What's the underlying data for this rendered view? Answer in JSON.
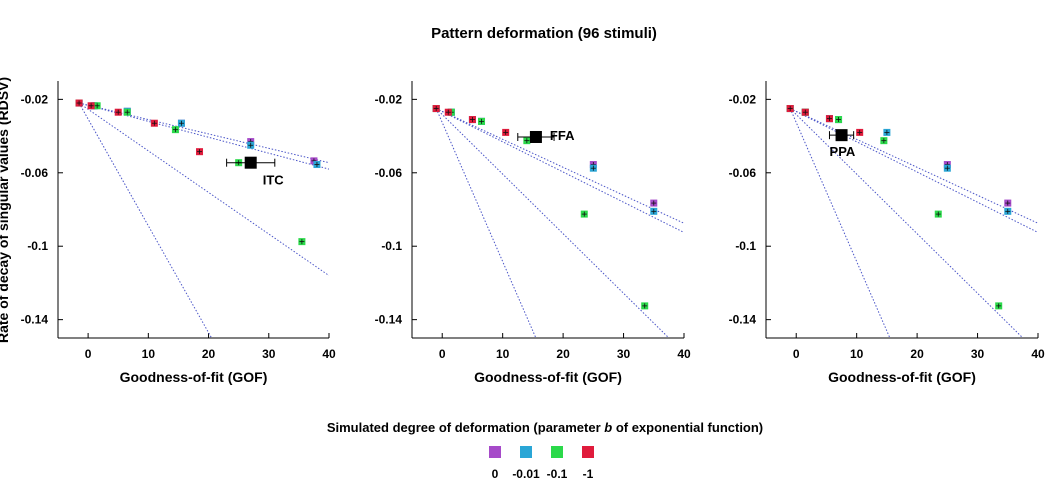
{
  "title": "Pattern deformation (96 stimuli)",
  "ylabel": "Rate of decay of singular values (RDSV)",
  "legend": {
    "title_prefix": "Simulated degree of deformation (parameter ",
    "title_italic": "b",
    "title_suffix": " of exponential function)",
    "entries": [
      {
        "label": "0",
        "color": "#a64ac9"
      },
      {
        "label": "-0.01",
        "color": "#2aa6d6"
      },
      {
        "label": "-0.1",
        "color": "#2bd94a"
      },
      {
        "label": "-1",
        "color": "#e01b3c"
      }
    ]
  },
  "chart_data": [
    {
      "type": "scatter",
      "xlabel": "Goodness-of-fit (GOF)",
      "xlim": [
        -5,
        40
      ],
      "ylim": [
        -0.15,
        -0.01
      ],
      "xticks": [
        0,
        10,
        20,
        30,
        40
      ],
      "yticks": [
        -0.02,
        -0.06,
        -0.1,
        -0.14
      ],
      "ytick_labels": [
        "-0.02",
        "-0.06",
        "-0.1",
        "-0.14"
      ],
      "series": [
        {
          "color": "#a64ac9",
          "points": [
            [
              -1.5,
              -0.022
            ],
            [
              1,
              -0.0235
            ],
            [
              6.5,
              -0.0265
            ],
            [
              15.5,
              -0.033
            ],
            [
              27,
              -0.043
            ],
            [
              37.5,
              -0.0535
            ]
          ]
        },
        {
          "color": "#2aa6d6",
          "points": [
            [
              -1.5,
              -0.022
            ],
            [
              1,
              -0.0235
            ],
            [
              6.5,
              -0.0265
            ],
            [
              15.5,
              -0.033
            ],
            [
              27,
              -0.045
            ],
            [
              38,
              -0.0555
            ]
          ]
        },
        {
          "color": "#2bd94a",
          "points": [
            [
              -1.5,
              -0.022
            ],
            [
              1.5,
              -0.0235
            ],
            [
              6.5,
              -0.027
            ],
            [
              14.5,
              -0.0365
            ],
            [
              25,
              -0.0545
            ],
            [
              35.5,
              -0.0975
            ]
          ]
        },
        {
          "color": "#e01b3c",
          "points": [
            [
              -1.5,
              -0.022
            ],
            [
              0.5,
              -0.0235
            ],
            [
              5,
              -0.027
            ],
            [
              11,
              -0.033
            ],
            [
              18.5,
              -0.0485
            ]
          ]
        }
      ],
      "fit_lines": [
        {
          "from": [
            -1.5,
            -0.022
          ],
          "to": [
            40,
            -0.0545
          ]
        },
        {
          "from": [
            -1.5,
            -0.022
          ],
          "to": [
            40,
            -0.058
          ]
        },
        {
          "from": [
            -1.5,
            -0.022
          ],
          "to": [
            40,
            -0.116
          ]
        },
        {
          "from": [
            -1.5,
            -0.022
          ],
          "to": [
            20.5,
            -0.15
          ]
        }
      ],
      "observed": {
        "label": "ITC",
        "x": 27,
        "y": -0.0545,
        "xerr": 4
      }
    },
    {
      "type": "scatter",
      "xlabel": "Goodness-of-fit (GOF)",
      "xlim": [
        -5,
        40
      ],
      "ylim": [
        -0.15,
        -0.01
      ],
      "xticks": [
        0,
        10,
        20,
        30,
        40
      ],
      "yticks": [
        -0.02,
        -0.06,
        -0.1,
        -0.14
      ],
      "ytick_labels": [
        "-0.02",
        "-0.06",
        "-0.1",
        "-0.14"
      ],
      "series": [
        {
          "color": "#a64ac9",
          "points": [
            [
              -1,
              -0.025
            ],
            [
              1.5,
              -0.027
            ],
            [
              5,
              -0.031
            ],
            [
              6.5,
              -0.032
            ],
            [
              25,
              -0.0555
            ],
            [
              35,
              -0.0765
            ]
          ]
        },
        {
          "color": "#2aa6d6",
          "points": [
            [
              -1,
              -0.025
            ],
            [
              1.5,
              -0.027
            ],
            [
              5,
              -0.031
            ],
            [
              6.5,
              -0.032
            ],
            [
              25,
              -0.0575
            ],
            [
              35,
              -0.081
            ]
          ]
        },
        {
          "color": "#2bd94a",
          "points": [
            [
              -1,
              -0.025
            ],
            [
              1.5,
              -0.027
            ],
            [
              6.5,
              -0.032
            ],
            [
              14,
              -0.0425
            ],
            [
              23.5,
              -0.0825
            ],
            [
              33.5,
              -0.1325
            ]
          ]
        },
        {
          "color": "#e01b3c",
          "points": [
            [
              -1,
              -0.025
            ],
            [
              1,
              -0.027
            ],
            [
              5,
              -0.031
            ],
            [
              10.5,
              -0.038
            ]
          ]
        }
      ],
      "fit_lines": [
        {
          "from": [
            -1,
            -0.025
          ],
          "to": [
            40,
            -0.0875
          ]
        },
        {
          "from": [
            -1,
            -0.025
          ],
          "to": [
            40,
            -0.0925
          ]
        },
        {
          "from": [
            -1,
            -0.025
          ],
          "to": [
            37.5,
            -0.15
          ]
        },
        {
          "from": [
            -1,
            -0.025
          ],
          "to": [
            15.5,
            -0.15
          ]
        }
      ],
      "observed": {
        "label": "FFA",
        "x": 15.5,
        "y": -0.0405,
        "xerr": 3
      }
    },
    {
      "type": "scatter",
      "xlabel": "Goodness-of-fit (GOF)",
      "xlim": [
        -5,
        40
      ],
      "ylim": [
        -0.15,
        -0.01
      ],
      "xticks": [
        0,
        10,
        20,
        30,
        40
      ],
      "yticks": [
        -0.02,
        -0.06,
        -0.1,
        -0.14
      ],
      "ytick_labels": [
        "-0.02",
        "-0.06",
        "-0.1",
        "-0.14"
      ],
      "series": [
        {
          "color": "#a64ac9",
          "points": [
            [
              -1,
              -0.025
            ],
            [
              1.5,
              -0.027
            ],
            [
              5.5,
              -0.0305
            ],
            [
              7,
              -0.031
            ],
            [
              25,
              -0.0555
            ],
            [
              35,
              -0.0765
            ]
          ]
        },
        {
          "color": "#2aa6d6",
          "points": [
            [
              -1,
              -0.025
            ],
            [
              1.5,
              -0.027
            ],
            [
              5.5,
              -0.0305
            ],
            [
              7,
              -0.031
            ],
            [
              15,
              -0.038
            ],
            [
              25,
              -0.0575
            ],
            [
              35,
              -0.081
            ]
          ]
        },
        {
          "color": "#2bd94a",
          "points": [
            [
              -1,
              -0.025
            ],
            [
              1.5,
              -0.027
            ],
            [
              7,
              -0.031
            ],
            [
              14.5,
              -0.0425
            ],
            [
              23.5,
              -0.0825
            ],
            [
              33.5,
              -0.1325
            ]
          ]
        },
        {
          "color": "#e01b3c",
          "points": [
            [
              -1,
              -0.025
            ],
            [
              1.5,
              -0.027
            ],
            [
              5.5,
              -0.0305
            ],
            [
              10.5,
              -0.038
            ]
          ]
        }
      ],
      "fit_lines": [
        {
          "from": [
            -1,
            -0.025
          ],
          "to": [
            40,
            -0.0875
          ]
        },
        {
          "from": [
            -1,
            -0.025
          ],
          "to": [
            40,
            -0.0925
          ]
        },
        {
          "from": [
            -1,
            -0.025
          ],
          "to": [
            37.5,
            -0.15
          ]
        },
        {
          "from": [
            -1,
            -0.025
          ],
          "to": [
            15.5,
            -0.15
          ]
        }
      ],
      "observed": {
        "label": "PPA",
        "x": 7.5,
        "y": -0.0395,
        "xerr": 2
      }
    }
  ]
}
